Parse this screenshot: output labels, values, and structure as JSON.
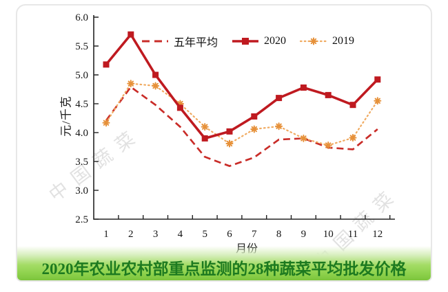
{
  "chart_data": {
    "type": "line",
    "title": "",
    "xlabel": "月份",
    "ylabel": "元/千克",
    "categories": [
      "1",
      "2",
      "3",
      "4",
      "5",
      "6",
      "7",
      "8",
      "9",
      "10",
      "11",
      "12"
    ],
    "ylim": [
      2.5,
      6.0
    ],
    "y_ticks": [
      2.5,
      3.0,
      3.5,
      4.0,
      4.5,
      5.0,
      5.5,
      6.0
    ],
    "y_tick_labels": [
      "2.5",
      "3.0",
      "3.5",
      "4.0",
      "4.5",
      "5.0",
      "5.5",
      "6.0"
    ],
    "grid": false,
    "legend_position": "top-inside",
    "series": [
      {
        "name": "五年平均",
        "style": "dashed",
        "color": "#c92c28",
        "values": [
          4.21,
          4.79,
          4.48,
          4.1,
          3.58,
          3.42,
          3.57,
          3.88,
          3.9,
          3.74,
          3.71,
          4.06
        ]
      },
      {
        "name": "2020",
        "style": "solid-square",
        "color": "#bf1a20",
        "values": [
          5.18,
          5.7,
          5.0,
          4.43,
          3.9,
          4.02,
          4.28,
          4.6,
          4.78,
          4.65,
          4.48,
          4.92
        ]
      },
      {
        "name": "2019",
        "style": "dotted-star",
        "color": "#f0aa60",
        "marker_color": "#e6913a",
        "values": [
          4.17,
          4.85,
          4.81,
          4.5,
          4.1,
          3.81,
          4.06,
          4.11,
          3.9,
          3.78,
          3.91,
          4.55
        ]
      }
    ]
  },
  "banner": {
    "title": "2020年农业农村部重点监测的28种蔬菜平均批发价格",
    "text_color": "#1d7a20",
    "green_top": "rgba(255,255,255,0)",
    "green_light": "#d8efbf",
    "green_mid": "#a4dc66",
    "green_strong": "#8ed24c",
    "green_edge": "#7cc43c"
  },
  "watermark": {
    "text": "中国蔬菜"
  }
}
